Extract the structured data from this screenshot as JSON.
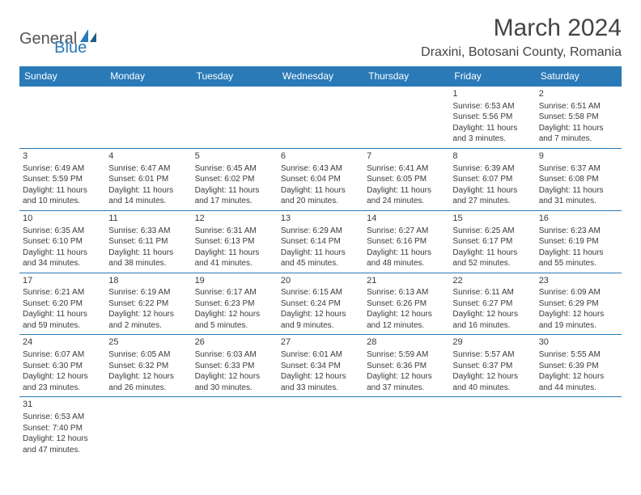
{
  "brand": {
    "part1": "General",
    "part2": "Blue"
  },
  "title": "March 2024",
  "location": "Draxini, Botosani County, Romania",
  "colors": {
    "header_bg": "#2a7ab8",
    "header_fg": "#ffffff",
    "border": "#2a7ab8",
    "text": "#3a3a3a",
    "bg": "#ffffff"
  },
  "day_headers": [
    "Sunday",
    "Monday",
    "Tuesday",
    "Wednesday",
    "Thursday",
    "Friday",
    "Saturday"
  ],
  "weeks": [
    [
      null,
      null,
      null,
      null,
      null,
      {
        "n": "1",
        "sr": "Sunrise: 6:53 AM",
        "ss": "Sunset: 5:56 PM",
        "d1": "Daylight: 11 hours",
        "d2": "and 3 minutes."
      },
      {
        "n": "2",
        "sr": "Sunrise: 6:51 AM",
        "ss": "Sunset: 5:58 PM",
        "d1": "Daylight: 11 hours",
        "d2": "and 7 minutes."
      }
    ],
    [
      {
        "n": "3",
        "sr": "Sunrise: 6:49 AM",
        "ss": "Sunset: 5:59 PM",
        "d1": "Daylight: 11 hours",
        "d2": "and 10 minutes."
      },
      {
        "n": "4",
        "sr": "Sunrise: 6:47 AM",
        "ss": "Sunset: 6:01 PM",
        "d1": "Daylight: 11 hours",
        "d2": "and 14 minutes."
      },
      {
        "n": "5",
        "sr": "Sunrise: 6:45 AM",
        "ss": "Sunset: 6:02 PM",
        "d1": "Daylight: 11 hours",
        "d2": "and 17 minutes."
      },
      {
        "n": "6",
        "sr": "Sunrise: 6:43 AM",
        "ss": "Sunset: 6:04 PM",
        "d1": "Daylight: 11 hours",
        "d2": "and 20 minutes."
      },
      {
        "n": "7",
        "sr": "Sunrise: 6:41 AM",
        "ss": "Sunset: 6:05 PM",
        "d1": "Daylight: 11 hours",
        "d2": "and 24 minutes."
      },
      {
        "n": "8",
        "sr": "Sunrise: 6:39 AM",
        "ss": "Sunset: 6:07 PM",
        "d1": "Daylight: 11 hours",
        "d2": "and 27 minutes."
      },
      {
        "n": "9",
        "sr": "Sunrise: 6:37 AM",
        "ss": "Sunset: 6:08 PM",
        "d1": "Daylight: 11 hours",
        "d2": "and 31 minutes."
      }
    ],
    [
      {
        "n": "10",
        "sr": "Sunrise: 6:35 AM",
        "ss": "Sunset: 6:10 PM",
        "d1": "Daylight: 11 hours",
        "d2": "and 34 minutes."
      },
      {
        "n": "11",
        "sr": "Sunrise: 6:33 AM",
        "ss": "Sunset: 6:11 PM",
        "d1": "Daylight: 11 hours",
        "d2": "and 38 minutes."
      },
      {
        "n": "12",
        "sr": "Sunrise: 6:31 AM",
        "ss": "Sunset: 6:13 PM",
        "d1": "Daylight: 11 hours",
        "d2": "and 41 minutes."
      },
      {
        "n": "13",
        "sr": "Sunrise: 6:29 AM",
        "ss": "Sunset: 6:14 PM",
        "d1": "Daylight: 11 hours",
        "d2": "and 45 minutes."
      },
      {
        "n": "14",
        "sr": "Sunrise: 6:27 AM",
        "ss": "Sunset: 6:16 PM",
        "d1": "Daylight: 11 hours",
        "d2": "and 48 minutes."
      },
      {
        "n": "15",
        "sr": "Sunrise: 6:25 AM",
        "ss": "Sunset: 6:17 PM",
        "d1": "Daylight: 11 hours",
        "d2": "and 52 minutes."
      },
      {
        "n": "16",
        "sr": "Sunrise: 6:23 AM",
        "ss": "Sunset: 6:19 PM",
        "d1": "Daylight: 11 hours",
        "d2": "and 55 minutes."
      }
    ],
    [
      {
        "n": "17",
        "sr": "Sunrise: 6:21 AM",
        "ss": "Sunset: 6:20 PM",
        "d1": "Daylight: 11 hours",
        "d2": "and 59 minutes."
      },
      {
        "n": "18",
        "sr": "Sunrise: 6:19 AM",
        "ss": "Sunset: 6:22 PM",
        "d1": "Daylight: 12 hours",
        "d2": "and 2 minutes."
      },
      {
        "n": "19",
        "sr": "Sunrise: 6:17 AM",
        "ss": "Sunset: 6:23 PM",
        "d1": "Daylight: 12 hours",
        "d2": "and 5 minutes."
      },
      {
        "n": "20",
        "sr": "Sunrise: 6:15 AM",
        "ss": "Sunset: 6:24 PM",
        "d1": "Daylight: 12 hours",
        "d2": "and 9 minutes."
      },
      {
        "n": "21",
        "sr": "Sunrise: 6:13 AM",
        "ss": "Sunset: 6:26 PM",
        "d1": "Daylight: 12 hours",
        "d2": "and 12 minutes."
      },
      {
        "n": "22",
        "sr": "Sunrise: 6:11 AM",
        "ss": "Sunset: 6:27 PM",
        "d1": "Daylight: 12 hours",
        "d2": "and 16 minutes."
      },
      {
        "n": "23",
        "sr": "Sunrise: 6:09 AM",
        "ss": "Sunset: 6:29 PM",
        "d1": "Daylight: 12 hours",
        "d2": "and 19 minutes."
      }
    ],
    [
      {
        "n": "24",
        "sr": "Sunrise: 6:07 AM",
        "ss": "Sunset: 6:30 PM",
        "d1": "Daylight: 12 hours",
        "d2": "and 23 minutes."
      },
      {
        "n": "25",
        "sr": "Sunrise: 6:05 AM",
        "ss": "Sunset: 6:32 PM",
        "d1": "Daylight: 12 hours",
        "d2": "and 26 minutes."
      },
      {
        "n": "26",
        "sr": "Sunrise: 6:03 AM",
        "ss": "Sunset: 6:33 PM",
        "d1": "Daylight: 12 hours",
        "d2": "and 30 minutes."
      },
      {
        "n": "27",
        "sr": "Sunrise: 6:01 AM",
        "ss": "Sunset: 6:34 PM",
        "d1": "Daylight: 12 hours",
        "d2": "and 33 minutes."
      },
      {
        "n": "28",
        "sr": "Sunrise: 5:59 AM",
        "ss": "Sunset: 6:36 PM",
        "d1": "Daylight: 12 hours",
        "d2": "and 37 minutes."
      },
      {
        "n": "29",
        "sr": "Sunrise: 5:57 AM",
        "ss": "Sunset: 6:37 PM",
        "d1": "Daylight: 12 hours",
        "d2": "and 40 minutes."
      },
      {
        "n": "30",
        "sr": "Sunrise: 5:55 AM",
        "ss": "Sunset: 6:39 PM",
        "d1": "Daylight: 12 hours",
        "d2": "and 44 minutes."
      }
    ],
    [
      {
        "n": "31",
        "sr": "Sunrise: 6:53 AM",
        "ss": "Sunset: 7:40 PM",
        "d1": "Daylight: 12 hours",
        "d2": "and 47 minutes."
      },
      null,
      null,
      null,
      null,
      null,
      null
    ]
  ]
}
